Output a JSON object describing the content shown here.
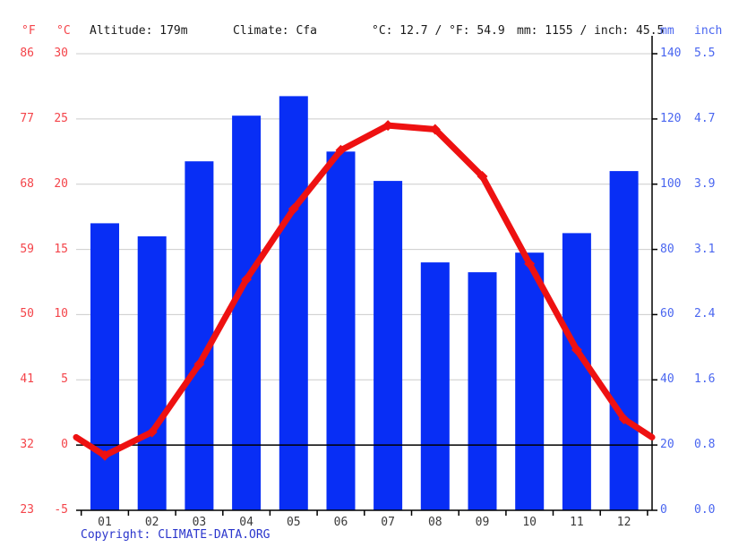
{
  "header": {
    "f_unit": "°F",
    "c_unit": "°C",
    "altitude": "Altitude: 179m",
    "climate": "Climate: Cfa",
    "temperature_summary": "°C: 12.7 / °F: 54.9",
    "precipitation_summary": "mm: 1155 / inch: 45.5",
    "mm_unit": "mm",
    "inch_unit": "inch"
  },
  "footer": {
    "copyright_label": "Copyright:",
    "copyright_link": "CLIMATE-DATA.ORG"
  },
  "colors": {
    "bar_blue": "#082EF5",
    "line_red": "#EE1111",
    "red_text": "#F4444A",
    "blue_text": "#4A66F0",
    "gridline": "#CCCCCC",
    "axis_black": "#000000"
  },
  "chart_data": {
    "type": "bar+line climate chart",
    "title": "",
    "categories": [
      "01",
      "02",
      "03",
      "04",
      "05",
      "06",
      "07",
      "08",
      "09",
      "10",
      "11",
      "12"
    ],
    "series": [
      {
        "name": "precipitation_mm",
        "type": "bar",
        "values": [
          88,
          84,
          107,
          121,
          127,
          110,
          101,
          76,
          73,
          79,
          85,
          104
        ]
      },
      {
        "name": "temperature_c",
        "type": "line",
        "values": [
          -0.8,
          1.0,
          6.2,
          12.7,
          18.1,
          22.6,
          24.5,
          24.2,
          20.6,
          13.9,
          7.3,
          2.0
        ]
      }
    ],
    "line_edge_wrap_c": 0.6,
    "grid": true,
    "zero_line_c": 0,
    "axes": {
      "left_f": {
        "ticks": [
          "86",
          "77",
          "68",
          "59",
          "50",
          "41",
          "32",
          "23"
        ]
      },
      "left_c": {
        "ticks": [
          "30",
          "25",
          "20",
          "15",
          "10",
          "5",
          "0",
          "-5"
        ],
        "range": [
          -5,
          30
        ]
      },
      "right_mm": {
        "ticks": [
          "140",
          "120",
          "100",
          "80",
          "60",
          "40",
          "20",
          "0"
        ],
        "range": [
          0,
          140
        ]
      },
      "right_inch": {
        "ticks": [
          "5.5",
          "4.7",
          "3.9",
          "3.1",
          "2.4",
          "1.6",
          "0.8",
          "0.0"
        ]
      }
    }
  }
}
